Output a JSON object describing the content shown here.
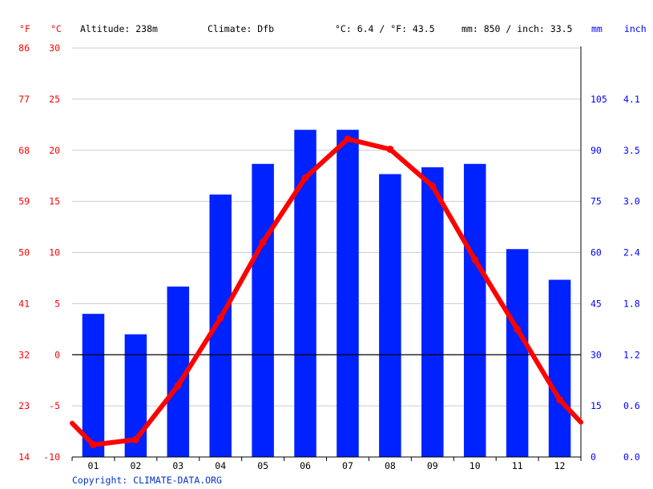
{
  "header": {
    "unit_f": "°F",
    "unit_c": "°C",
    "altitude": "Altitude: 238m",
    "climate": "Climate: Dfb",
    "temp_avg": "°C: 6.4 / °F: 43.5",
    "precip_total": "mm: 850 / inch: 33.5",
    "unit_mm": "mm",
    "unit_inch": "inch"
  },
  "footer": {
    "copyright": "Copyright: CLIMATE-DATA.ORG"
  },
  "colors": {
    "temperature": "#ff0000",
    "precipitation": "#0022ff",
    "grid": "#cccccc",
    "zero_line": "#000000"
  },
  "chart_data": {
    "type": "bar",
    "categories": [
      "01",
      "02",
      "03",
      "04",
      "05",
      "06",
      "07",
      "08",
      "09",
      "10",
      "11",
      "12"
    ],
    "series": [
      {
        "kind": "bar",
        "axis": "right",
        "values": [
          42,
          36,
          50,
          77,
          86,
          96,
          96,
          83,
          85,
          86,
          61,
          52
        ]
      },
      {
        "kind": "line",
        "axis": "left",
        "values": [
          -8.8,
          -8.3,
          -3.0,
          3.6,
          11.0,
          17.3,
          21.1,
          20.1,
          16.5,
          9.3,
          2.5,
          -4.4
        ],
        "edge_values": [
          -6.7,
          -6.6
        ]
      }
    ],
    "axes": {
      "left_c": {
        "ticks": [
          30,
          25,
          20,
          15,
          10,
          5,
          0,
          -5,
          -10
        ],
        "range": [
          -10,
          30
        ]
      },
      "left_f": {
        "ticks": [
          "86",
          "77",
          "68",
          "59",
          "50",
          "41",
          "32",
          "23",
          "14"
        ]
      },
      "right_mm": {
        "ticks": [
          "105",
          "90",
          "75",
          "60",
          "45",
          "30",
          "15",
          "0"
        ],
        "range": [
          0,
          120
        ]
      },
      "right_inch": {
        "ticks": [
          "4.1",
          "3.5",
          "3.0",
          "2.4",
          "1.8",
          "1.2",
          "0.6",
          "0.0"
        ]
      }
    },
    "grid": true
  }
}
